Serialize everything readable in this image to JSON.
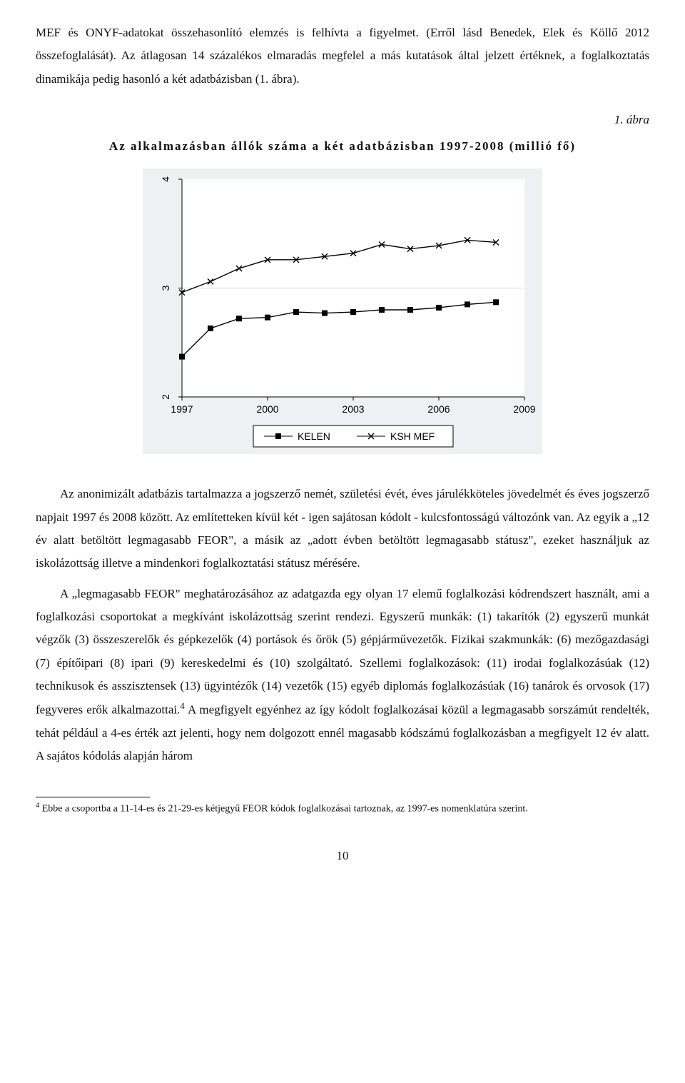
{
  "para1": "MEF és ONYF-adatokat összehasonlító elemzés is felhívta a figyelmet. (Erről lásd Benedek, Elek és Köllő 2012 összefoglalását). Az átlagosan 14 százalékos elmaradás megfelel a más kutatások által jelzett értéknek, a foglalkoztatás dinamikája pedig hasonló a két adatbázisban (1. ábra).",
  "fig_label": "1. ábra",
  "fig_title": "Az alkalmazásban állók száma a két adatbázisban 1997-2008 (millió fő)",
  "chart": {
    "type": "line",
    "background_color": "#eef1f4",
    "plot_bg": "#ffffff",
    "axis_color": "#000000",
    "grid_color": "#dcdcdc",
    "tick_fontsize": 14,
    "ylim": [
      2,
      4
    ],
    "yticks": [
      2,
      3,
      4
    ],
    "xticks": [
      1997,
      2000,
      2003,
      2006,
      2009
    ],
    "series": [
      {
        "name": "KELEN",
        "marker": "square",
        "color": "#000000",
        "x": [
          1997,
          1998,
          1999,
          2000,
          2001,
          2002,
          2003,
          2004,
          2005,
          2006,
          2007,
          2008
        ],
        "y": [
          2.37,
          2.63,
          2.72,
          2.73,
          2.78,
          2.77,
          2.78,
          2.8,
          2.8,
          2.82,
          2.85,
          2.87
        ]
      },
      {
        "name": "KSH MEF",
        "marker": "x",
        "color": "#000000",
        "x": [
          1997,
          1998,
          1999,
          2000,
          2001,
          2002,
          2003,
          2004,
          2005,
          2006,
          2007,
          2008
        ],
        "y": [
          2.96,
          3.06,
          3.18,
          3.26,
          3.26,
          3.29,
          3.32,
          3.4,
          3.36,
          3.39,
          3.44,
          3.42
        ]
      }
    ],
    "legend": {
      "items": [
        "KELEN",
        "KSH MEF"
      ]
    }
  },
  "para2a": "Az anonimizált adatbázis tartalmazza a jogszerző nemét, születési évét, éves járulékköteles jövedelmét és éves jogszerző napjait 1997 és 2008 között. Az említetteken kívül két - igen sajátosan kódolt - kulcsfontosságú változónk van. Az egyik a „12 év alatt betöltött legmagasabb FEOR\", a másik az „adott évben betöltött legmagasabb státusz\", ezeket használjuk az iskolázottság illetve a mindenkori foglalkoztatási státusz mérésére.",
  "para3a": "A „legmagasabb FEOR\" meghatározásához az adatgazda egy olyan 17 elemű foglalkozási kódrendszert használt, ami a foglalkozási csoportokat a megkívánt iskolázottság szerint rendezi. Egyszerű munkák: (1) takarítók (2) egyszerű munkát végzők (3) összeszerelők és gépkezelők (4) portások és őrök (5) gépjárművezetők. Fizikai szakmunkák: (6) mezőgazdasági (7) építőipari (8) ipari (9) kereskedelmi és (10) szolgáltató. Szellemi foglalkozások: (11) irodai foglalkozásúak (12) technikusok és asszisztensek (13) ügyintézők (14) vezetők (15) egyéb diplomás foglalkozásúak (16) tanárok és orvosok (17) fegyveres erők alkalmazottai.",
  "para3b": " A megfigyelt egyénhez az így kódolt foglalkozásai közül a legmagasabb sorszámút rendelték, tehát például a 4-es érték azt jelenti, hogy nem dolgozott ennél magasabb kódszámú foglalkozásban a megfigyelt 12 év alatt. A sajátos kódolás alapján három",
  "footnote_marker": "4",
  "footnote_text": " Ebbe a csoportba a 11-14-es és 21-29-es kétjegyű FEOR kódok foglalkozásai tartoznak, az 1997-es nomenklatúra szerint.",
  "page_number": "10"
}
